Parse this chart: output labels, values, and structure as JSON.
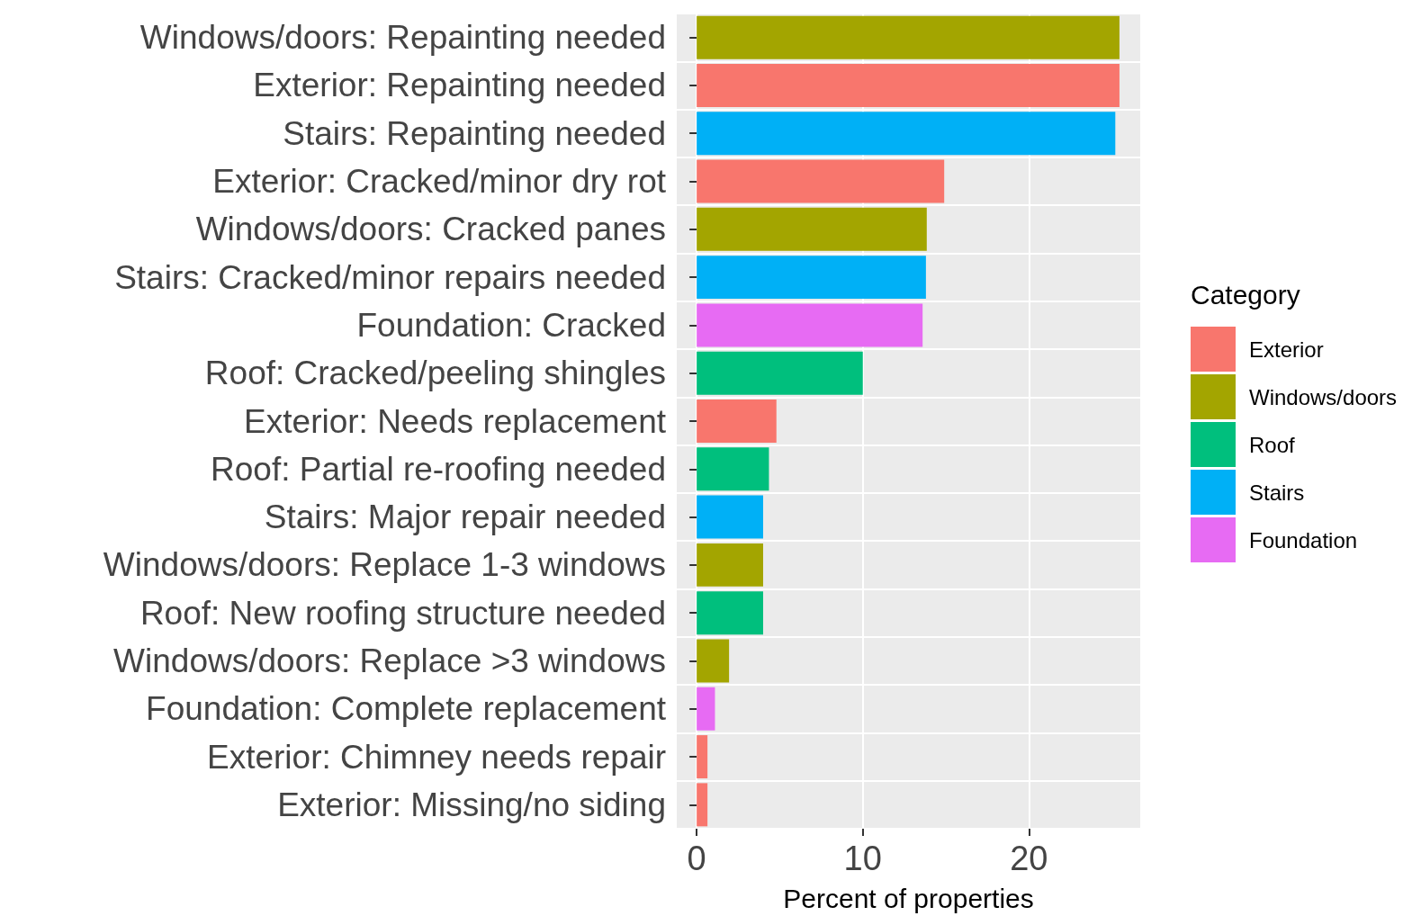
{
  "chart_data": {
    "type": "bar",
    "orientation": "horizontal",
    "xlabel": "Percent of properties",
    "legend_title": "Category",
    "categories": [
      "Windows/doors: Repainting needed",
      "Exterior: Repainting needed",
      "Stairs: Repainting needed",
      "Exterior: Cracked/minor dry rot",
      "Windows/doors: Cracked panes",
      "Stairs: Cracked/minor repairs needed",
      "Foundation: Cracked",
      "Roof: Cracked/peeling shingles",
      "Exterior: Needs replacement",
      "Roof: Partial re-roofing needed",
      "Stairs: Major repair needed",
      "Windows/doors: Replace 1-3 windows",
      "Roof: New roofing structure needed",
      "Windows/doors: Replace >3 windows",
      "Foundation: Complete replacement",
      "Exterior: Chimney needs repair",
      "Exterior: Missing/no siding"
    ],
    "series": [
      {
        "name": "Exterior",
        "color": "#f8766d",
        "values": [
          null,
          25.45,
          null,
          14.9,
          null,
          null,
          null,
          null,
          4.8,
          null,
          null,
          null,
          null,
          null,
          null,
          0.65,
          0.65
        ]
      },
      {
        "name": "Windows/doors",
        "color": "#a3a500",
        "values": [
          25.45,
          null,
          null,
          null,
          13.85,
          null,
          null,
          null,
          null,
          null,
          null,
          4.0,
          null,
          1.95,
          null,
          null,
          null
        ]
      },
      {
        "name": "Roof",
        "color": "#00bf7d",
        "values": [
          null,
          null,
          null,
          null,
          null,
          null,
          null,
          10.0,
          null,
          4.35,
          null,
          null,
          4.0,
          null,
          null,
          null,
          null
        ]
      },
      {
        "name": "Stairs",
        "color": "#00b0f6",
        "values": [
          null,
          null,
          25.2,
          null,
          null,
          13.8,
          null,
          null,
          null,
          null,
          4.0,
          null,
          null,
          null,
          null,
          null,
          null
        ]
      },
      {
        "name": "Foundation",
        "color": "#e76bf3",
        "values": [
          null,
          null,
          null,
          null,
          null,
          null,
          13.6,
          null,
          null,
          null,
          null,
          null,
          null,
          null,
          1.1,
          null,
          null
        ]
      }
    ],
    "xlim": [
      -1.2,
      26.7
    ],
    "xticks": [
      0,
      10,
      20
    ],
    "grid": true,
    "legend": "right"
  }
}
